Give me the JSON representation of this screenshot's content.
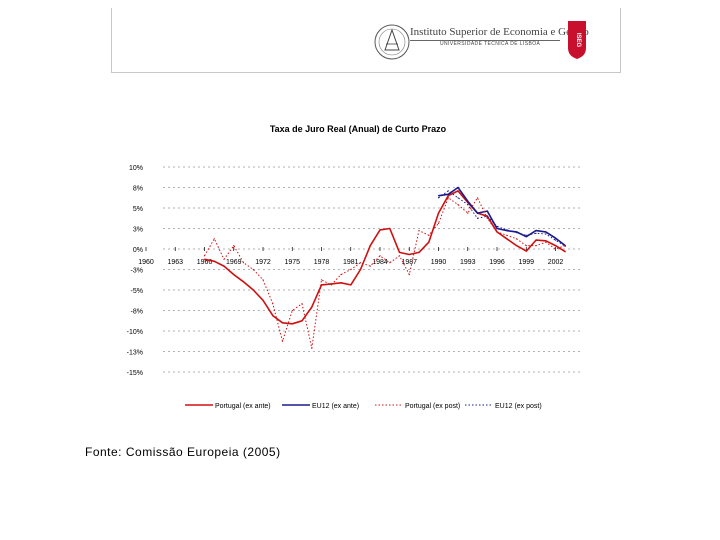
{
  "header": {
    "institution": "Instituto Superior de Economia e Gestão",
    "university": "UNIVERSIDADE TÉCNICA DE LISBOA",
    "shield_text": "ISEG",
    "brand_color": "#c8102e"
  },
  "chart_data": {
    "type": "line",
    "title": "Taxa de Juro Real (Anual) de Curto Prazo",
    "ylim": [
      -15,
      10
    ],
    "yticks": [
      10,
      8,
      5,
      3,
      0,
      -3,
      -5,
      -8,
      -10,
      -13,
      -15
    ],
    "ytick_labels": [
      "10%",
      "8%",
      "5%",
      "3%",
      "0%",
      "-3%",
      "-5%",
      "-8%",
      "-10%",
      "-13%",
      "-15%"
    ],
    "xlim": [
      1960,
      2004
    ],
    "xticks": [
      1960,
      1963,
      1966,
      1969,
      1972,
      1975,
      1978,
      1981,
      1984,
      1987,
      1990,
      1993,
      1996,
      1999,
      2002
    ],
    "grid": true,
    "legend_position": "bottom",
    "series": [
      {
        "name": "Portugal (ex ante)",
        "color": "#d01010",
        "style": "solid",
        "x": [
          1966,
          1967,
          1968,
          1969,
          1970,
          1971,
          1972,
          1973,
          1974,
          1975,
          1976,
          1977,
          1978,
          1979,
          1980,
          1981,
          1982,
          1983,
          1984,
          1985,
          1986,
          1987,
          1988,
          1989,
          1990,
          1991,
          1992,
          1993,
          1994,
          1995,
          1996,
          1997,
          1998,
          1999,
          2000,
          2001,
          2002,
          2003
        ],
        "y": [
          -1.5,
          -1.8,
          -2.5,
          -3.5,
          -4.2,
          -5,
          -6.5,
          -8.5,
          -9.2,
          -9.3,
          -9,
          -7.5,
          -4.5,
          -4.4,
          -4.3,
          -4.5,
          -3,
          0.5,
          2.8,
          3,
          -0.5,
          -0.8,
          -0.5,
          1,
          4.5,
          6.8,
          7.5,
          5.8,
          4.5,
          4.2,
          2.5,
          1.5,
          0.5,
          -0.3,
          1.3,
          1.2,
          0.5,
          -0.4
        ]
      },
      {
        "name": "EU12 (ex ante)",
        "color": "#1a1a8c",
        "style": "solid",
        "x": [
          1990,
          1991,
          1992,
          1993,
          1994,
          1995,
          1996,
          1997,
          1998,
          1999,
          2000,
          2001,
          2002,
          2003
        ],
        "y": [
          6.8,
          7,
          8,
          6,
          4.5,
          4.7,
          3,
          2.7,
          2.5,
          1.8,
          2.7,
          2.5,
          1.6,
          0.5
        ]
      },
      {
        "name": "Portugal (ex post)",
        "color": "#d01010",
        "style": "dotted",
        "x": [
          1966,
          1967,
          1968,
          1969,
          1970,
          1971,
          1972,
          1973,
          1974,
          1975,
          1976,
          1977,
          1978,
          1979,
          1980,
          1981,
          1982,
          1983,
          1984,
          1985,
          1986,
          1987,
          1988,
          1989,
          1990,
          1991,
          1992,
          1993,
          1994,
          1995,
          1996,
          1997,
          1998,
          1999,
          2000,
          2001,
          2002,
          2003
        ],
        "y": [
          -1,
          1.5,
          -1.5,
          0.5,
          -2,
          -3,
          -4,
          -7,
          -11.5,
          -8,
          -7,
          -12.5,
          -4,
          -4.5,
          -3.5,
          -3,
          -2,
          -2.5,
          -1,
          -2,
          -1,
          -3.5,
          2.7,
          2,
          3.5,
          6.5,
          5.5,
          4.5,
          6.5,
          4,
          2.5,
          2,
          1.5,
          0.5,
          0.5,
          1,
          0,
          0.5
        ]
      },
      {
        "name": "EU12 (ex post)",
        "color": "#1a1a8c",
        "style": "dotted",
        "x": [
          1990,
          1991,
          1992,
          1993,
          1994,
          1995,
          1996,
          1997,
          1998,
          1999,
          2000,
          2001,
          2002,
          2003
        ],
        "y": [
          6.5,
          7.5,
          6.5,
          5.5,
          4,
          4.2,
          3.2,
          2.8,
          2.4,
          2,
          2.3,
          2.2,
          1.3,
          0.4
        ]
      }
    ]
  },
  "source": "Fonte: Comissão Europeia (2005)"
}
